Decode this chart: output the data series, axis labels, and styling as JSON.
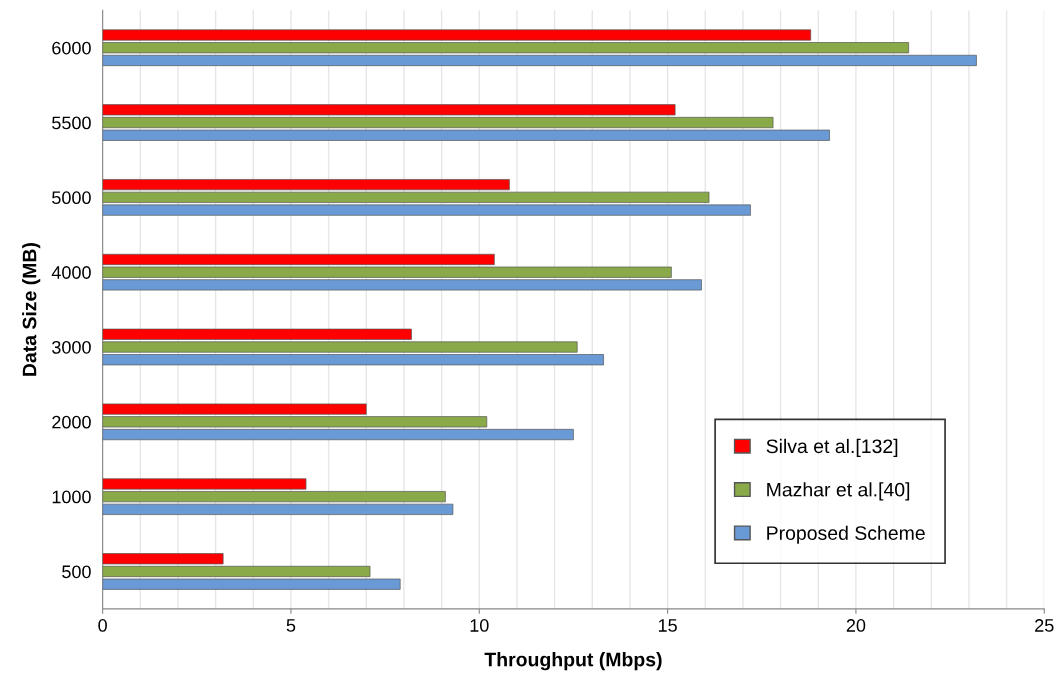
{
  "chart_data": {
    "type": "bar",
    "orientation": "horizontal",
    "xlabel": "Throughput (Mbps)",
    "ylabel": "Data Size (MB)",
    "categories": [
      "6000",
      "5500",
      "5000",
      "4000",
      "3000",
      "2000",
      "1000",
      "500"
    ],
    "series": [
      {
        "name": "Silva et al.[132]",
        "color": "#ff0000",
        "values": [
          18.8,
          15.2,
          10.8,
          10.4,
          8.2,
          7.0,
          5.4,
          3.2
        ]
      },
      {
        "name": "Mazhar et al.[40]",
        "color": "#8aaa4a",
        "values": [
          21.4,
          17.8,
          16.1,
          15.1,
          12.6,
          10.2,
          9.1,
          7.1
        ]
      },
      {
        "name": "Proposed Scheme",
        "color": "#6a9ad6",
        "values": [
          23.2,
          19.3,
          17.2,
          15.9,
          13.3,
          12.5,
          9.3,
          7.9
        ]
      }
    ],
    "xlim": [
      0,
      25
    ],
    "xticks": [
      0,
      {
        "value": 1,
        "label": null
      },
      {
        "value": 2,
        "label": null
      },
      {
        "value": 3,
        "label": null
      },
      {
        "value": 4,
        "label": null
      },
      5,
      {
        "value": 6,
        "label": null
      },
      {
        "value": 7,
        "label": null
      },
      {
        "value": 8,
        "label": null
      },
      {
        "value": 9,
        "label": null
      },
      10,
      {
        "value": 11,
        "label": null
      },
      {
        "value": 12,
        "label": null
      },
      {
        "value": 13,
        "label": null
      },
      {
        "value": 14,
        "label": null
      },
      15,
      {
        "value": 16,
        "label": null
      },
      {
        "value": 17,
        "label": null
      },
      {
        "value": 18,
        "label": null
      },
      {
        "value": 19,
        "label": null
      },
      20,
      {
        "value": 21,
        "label": null
      },
      {
        "value": 22,
        "label": null
      },
      {
        "value": 23,
        "label": null
      },
      {
        "value": 24,
        "label": null
      },
      25
    ],
    "grid": "x",
    "legend": "bottom right"
  }
}
